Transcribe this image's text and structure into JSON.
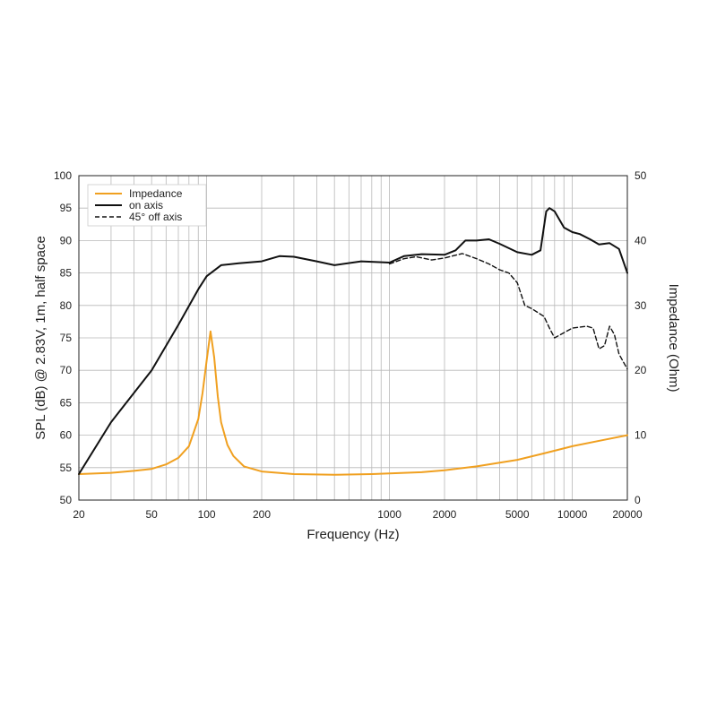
{
  "chart_data": {
    "type": "line",
    "xlabel": "Frequency (Hz)",
    "ylabel_left": "SPL (dB) @ 2.83V, 1m, half space",
    "ylabel_right": "Impedance (Ohm)",
    "x_scale": "log",
    "xlim": [
      20,
      20000
    ],
    "ylim_left": [
      50,
      100
    ],
    "ylim_right": [
      0,
      50
    ],
    "grid": true,
    "legend_position": "top-left",
    "x_ticks": [
      20,
      50,
      100,
      200,
      1000,
      2000,
      5000,
      10000,
      20000
    ],
    "x_tick_labels": [
      "20",
      "50",
      "100",
      "200",
      "1000",
      "2000",
      "5000",
      "10000",
      "20000"
    ],
    "y_ticks_left": [
      50,
      55,
      60,
      65,
      70,
      75,
      80,
      85,
      90,
      95,
      100
    ],
    "y_tick_labels_left": [
      "50",
      "55",
      "60",
      "65",
      "70",
      "75",
      "80",
      "85",
      "90",
      "95",
      "100"
    ],
    "y_ticks_right": [
      0,
      10,
      20,
      30,
      40,
      50
    ],
    "y_tick_labels_right": [
      "0",
      "10",
      "20",
      "30",
      "40",
      "50"
    ],
    "series": [
      {
        "name": "Impedance",
        "axis": "right",
        "color": "#f0a020",
        "style": "solid",
        "x": [
          20,
          30,
          40,
          50,
          60,
          70,
          80,
          90,
          95,
          100,
          105,
          110,
          115,
          120,
          130,
          140,
          160,
          200,
          300,
          500,
          800,
          1000,
          1500,
          2000,
          3000,
          5000,
          7000,
          10000,
          15000,
          20000
        ],
        "y": [
          4,
          4.2,
          4.5,
          4.8,
          5.5,
          6.5,
          8.3,
          12.5,
          16.5,
          21.5,
          26,
          22,
          16,
          12,
          8.5,
          6.8,
          5.2,
          4.4,
          4.0,
          3.9,
          4.0,
          4.1,
          4.3,
          4.6,
          5.2,
          6.2,
          7.2,
          8.3,
          9.3,
          10
        ]
      },
      {
        "name": "on axis",
        "axis": "left",
        "color": "#111111",
        "style": "solid",
        "x": [
          20,
          30,
          50,
          70,
          90,
          100,
          120,
          150,
          200,
          250,
          300,
          400,
          500,
          700,
          1000,
          1200,
          1500,
          2000,
          2300,
          2600,
          3000,
          3500,
          4000,
          5000,
          6000,
          6700,
          7200,
          7500,
          8000,
          9000,
          10000,
          11000,
          12500,
          14000,
          16000,
          18000,
          20000
        ],
        "y": [
          54,
          62,
          70,
          77,
          82.5,
          84.5,
          86.2,
          86.5,
          86.8,
          87.6,
          87.5,
          86.8,
          86.2,
          86.8,
          86.6,
          87.6,
          87.9,
          87.8,
          88.5,
          90,
          90,
          90.2,
          89.5,
          88.2,
          87.8,
          88.5,
          94.5,
          95,
          94.5,
          92,
          91.3,
          91,
          90.2,
          89.4,
          89.6,
          88.7,
          85
        ]
      },
      {
        "name": "45° off axis",
        "axis": "left",
        "color": "#111111",
        "style": "dashed",
        "x": [
          1000,
          1200,
          1400,
          1700,
          2000,
          2500,
          3000,
          3500,
          4000,
          4500,
          5000,
          5500,
          6000,
          7000,
          7500,
          8000,
          9000,
          10000,
          12000,
          13000,
          14000,
          15000,
          16000,
          17000,
          18000,
          20000
        ],
        "y": [
          86.4,
          87.2,
          87.5,
          87,
          87.3,
          88,
          87.2,
          86.4,
          85.5,
          85,
          83.5,
          80,
          79.5,
          78.3,
          76.5,
          75,
          75.8,
          76.5,
          76.8,
          76.5,
          73.3,
          73.8,
          76.8,
          75.5,
          72.5,
          70.2
        ]
      }
    ]
  }
}
